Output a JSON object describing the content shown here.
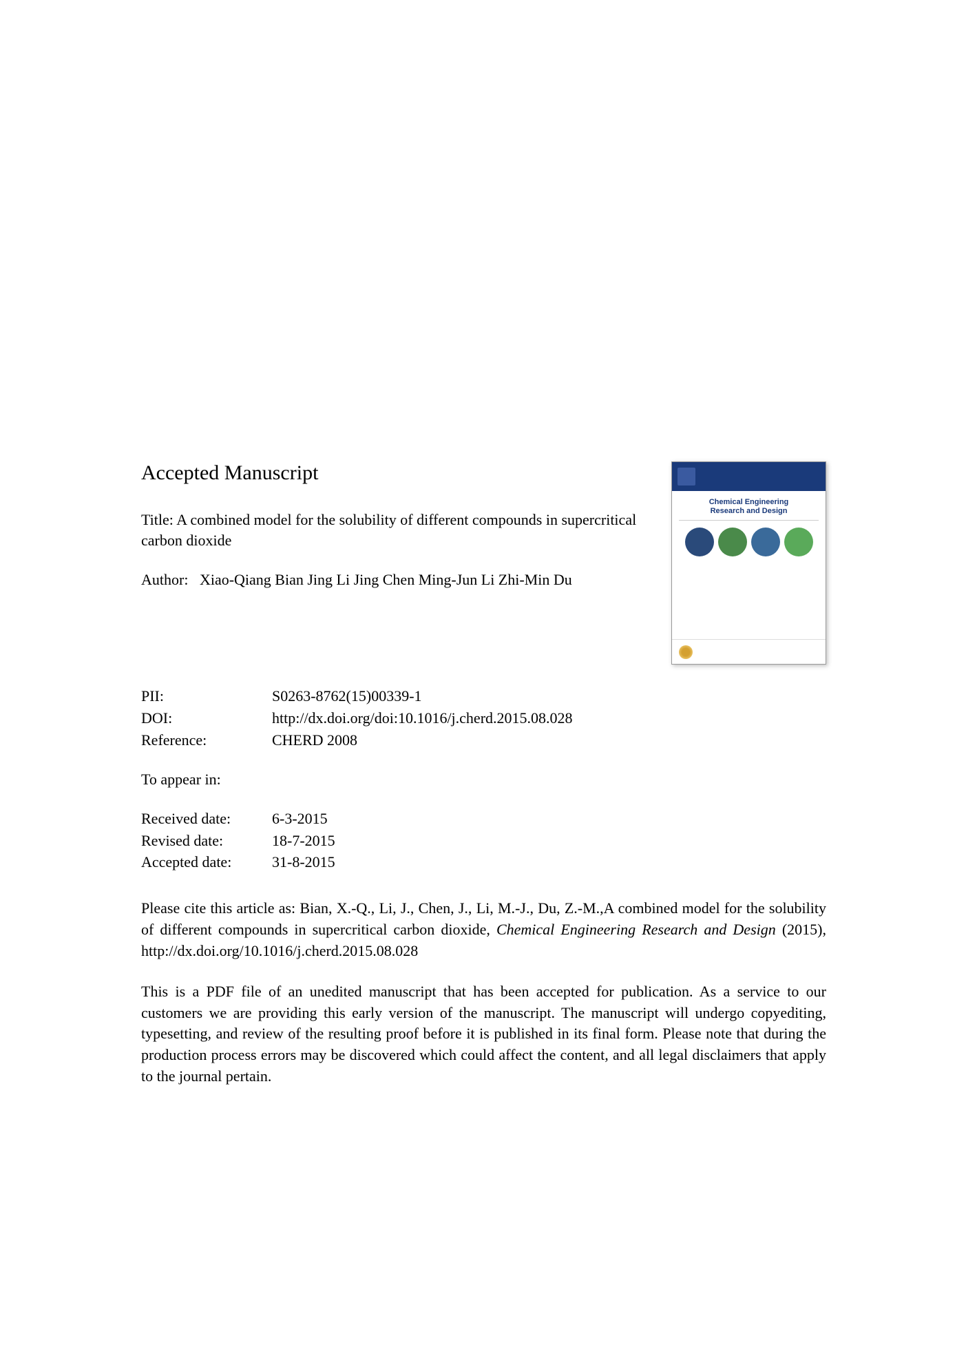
{
  "heading": "Accepted Manuscript",
  "title_label": "Title:",
  "title_text": "A combined model for the solubility of different compounds in supercritical carbon dioxide",
  "author_label": "Author:",
  "author_text": "Xiao-Qiang Bian Jing Li Jing Chen Ming-Jun Li Zhi-Min Du",
  "journal_cover": {
    "top_text": "",
    "title_line1": "Chemical Engineering",
    "title_line2": "Research and Design",
    "subtitle": "",
    "circle_colors": [
      "#2a4a7a",
      "#4a8a4a",
      "#3a6a9a",
      "#5aaa5a"
    ]
  },
  "meta": {
    "pii_label": "PII:",
    "pii_value": "S0263-8762(15)00339-1",
    "doi_label": "DOI:",
    "doi_value": "http://dx.doi.org/doi:10.1016/j.cherd.2015.08.028",
    "ref_label": "Reference:",
    "ref_value": "CHERD 2008"
  },
  "appear_label": "To appear in:",
  "dates": {
    "received_label": "Received date:",
    "received_value": "6-3-2015",
    "revised_label": "Revised date:",
    "revised_value": "18-7-2015",
    "accepted_label": "Accepted date:",
    "accepted_value": "31-8-2015"
  },
  "citation_pre": "Please cite this article as: Bian, X.-Q., Li, J., Chen, J., Li, M.-J., Du, Z.-M.,A combined model for the solubility of different compounds in supercritical carbon dioxide, ",
  "citation_journal": "Chemical Engineering Research and Design",
  "citation_post": " (2015), http://dx.doi.org/10.1016/j.cherd.2015.08.028",
  "disclaimer": "This is a PDF file of an unedited manuscript that has been accepted for publication. As a service to our customers we are providing this early version of the manuscript. The manuscript will undergo copyediting, typesetting, and review of the resulting proof before it is published in its final form. Please note that during the production process errors may be discovered which could affect the content, and all legal disclaimers that apply to the journal pertain."
}
